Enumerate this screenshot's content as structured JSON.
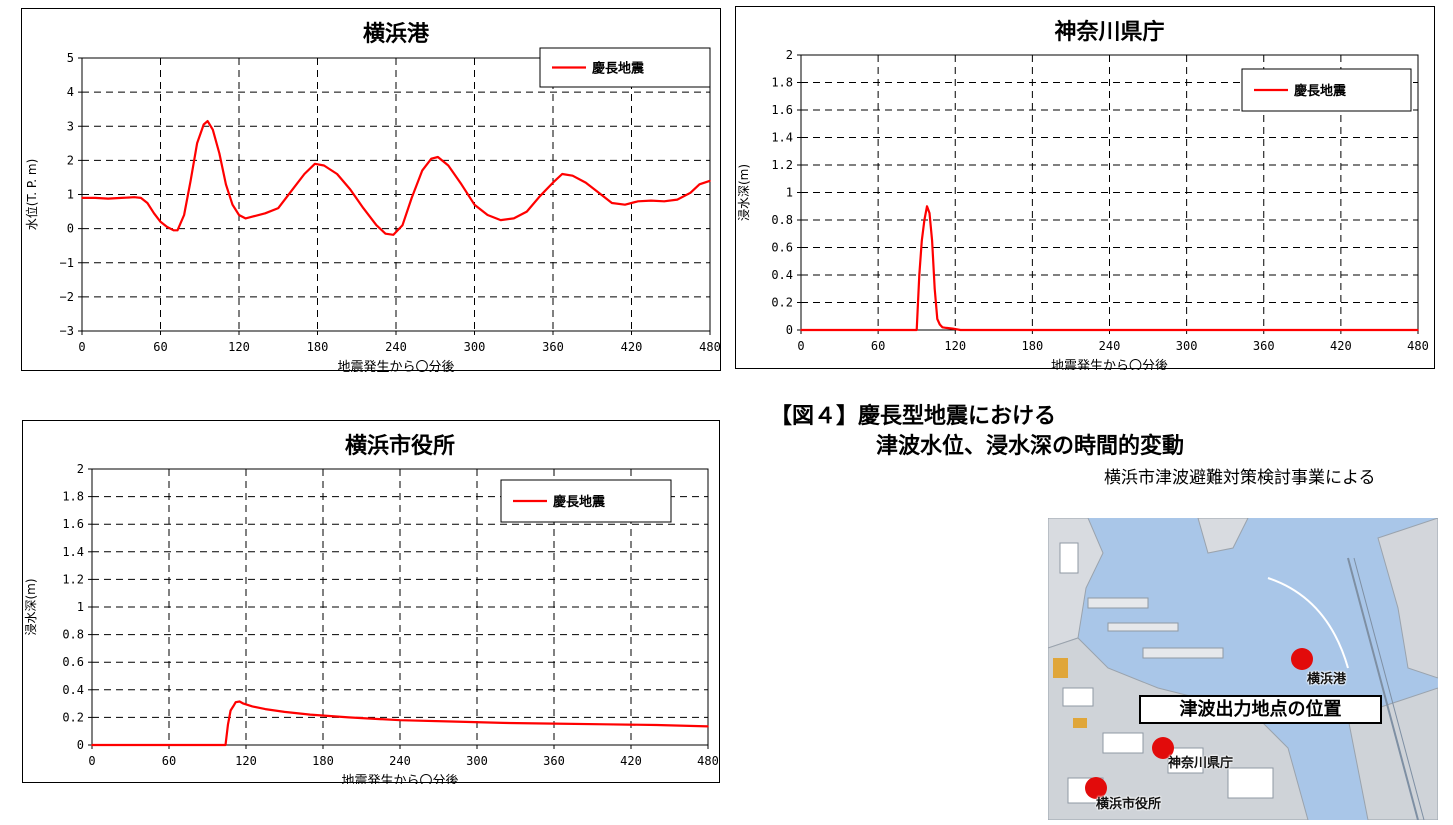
{
  "caption": {
    "line1": "【図４】慶長型地震における",
    "line2": "津波水位、浸水深の時間的変動",
    "source": "横浜市津波避難対策検討事業による"
  },
  "map": {
    "title": "津波出力地点の位置",
    "markers": [
      {
        "label": "横浜港"
      },
      {
        "label": "神奈川県庁"
      },
      {
        "label": "横浜市役所"
      }
    ],
    "colors": {
      "water": "#a9c6e8",
      "marker": "#e20b0b"
    }
  },
  "chart_data": [
    {
      "type": "line",
      "title": "横浜港",
      "xlabel": "地震発生から〇分後",
      "ylabel": "水位(T. P. m)",
      "xlim": [
        0,
        480
      ],
      "ylim": [
        -3,
        5
      ],
      "xticks": [
        0,
        60,
        120,
        180,
        240,
        300,
        360,
        420,
        480
      ],
      "yticks": [
        -3,
        -2,
        -1,
        0,
        1,
        2,
        3,
        4,
        5
      ],
      "ytick_labels": [
        "−3",
        "−2",
        "−1",
        "0",
        "1",
        "2",
        "3",
        "4",
        "5"
      ],
      "grid": true,
      "legend": "top-right",
      "series": [
        {
          "name": "慶長地震",
          "color": "#ff0000",
          "x": [
            0,
            10,
            20,
            30,
            40,
            45,
            50,
            55,
            60,
            65,
            70,
            73,
            78,
            83,
            88,
            93,
            96,
            100,
            105,
            110,
            115,
            120,
            125,
            130,
            140,
            150,
            160,
            170,
            178,
            185,
            195,
            205,
            215,
            225,
            232,
            238,
            245,
            252,
            260,
            267,
            272,
            280,
            290,
            300,
            310,
            320,
            330,
            340,
            350,
            360,
            367,
            375,
            385,
            395,
            405,
            415,
            425,
            435,
            445,
            455,
            465,
            472,
            480
          ],
          "y": [
            0.9,
            0.9,
            0.88,
            0.9,
            0.92,
            0.9,
            0.75,
            0.45,
            0.2,
            0.05,
            -0.05,
            -0.05,
            0.4,
            1.4,
            2.5,
            3.05,
            3.15,
            2.9,
            2.2,
            1.3,
            0.7,
            0.4,
            0.3,
            0.35,
            0.45,
            0.6,
            1.1,
            1.6,
            1.9,
            1.85,
            1.6,
            1.15,
            0.6,
            0.1,
            -0.15,
            -0.18,
            0.1,
            0.9,
            1.7,
            2.05,
            2.1,
            1.85,
            1.3,
            0.7,
            0.4,
            0.25,
            0.3,
            0.5,
            0.95,
            1.35,
            1.6,
            1.55,
            1.35,
            1.05,
            0.75,
            0.7,
            0.8,
            0.82,
            0.8,
            0.85,
            1.05,
            1.3,
            1.4
          ]
        }
      ]
    },
    {
      "type": "line",
      "title": "神奈川県庁",
      "xlabel": "地震発生から〇分後",
      "ylabel": "浸水深(m)",
      "xlim": [
        0,
        480
      ],
      "ylim": [
        0,
        2
      ],
      "xticks": [
        0,
        60,
        120,
        180,
        240,
        300,
        360,
        420,
        480
      ],
      "yticks": [
        0,
        0.2,
        0.4,
        0.6,
        0.8,
        1,
        1.2,
        1.4,
        1.6,
        1.8,
        2
      ],
      "ytick_labels": [
        "0",
        "0.2",
        "0.4",
        "0.6",
        "0.8",
        "1",
        "1.2",
        "1.4",
        "1.6",
        "1.8",
        "2"
      ],
      "grid": true,
      "legend": "top-right",
      "series": [
        {
          "name": "慶長地震",
          "color": "#ff0000",
          "x": [
            0,
            90,
            92,
            94,
            96,
            98,
            100,
            102,
            104,
            106,
            108,
            110,
            113,
            118,
            124,
            130,
            480
          ],
          "y": [
            0,
            0,
            0.4,
            0.65,
            0.8,
            0.9,
            0.85,
            0.65,
            0.3,
            0.08,
            0.04,
            0.02,
            0.015,
            0.01,
            0,
            0,
            0
          ]
        }
      ]
    },
    {
      "type": "line",
      "title": "横浜市役所",
      "xlabel": "地震発生から〇分後",
      "ylabel": "浸水深(m)",
      "xlim": [
        0,
        480
      ],
      "ylim": [
        0,
        2
      ],
      "xticks": [
        0,
        60,
        120,
        180,
        240,
        300,
        360,
        420,
        480
      ],
      "yticks": [
        0,
        0.2,
        0.4,
        0.6,
        0.8,
        1,
        1.2,
        1.4,
        1.6,
        1.8,
        2
      ],
      "ytick_labels": [
        "0",
        "0.2",
        "0.4",
        "0.6",
        "0.8",
        "1",
        "1.2",
        "1.4",
        "1.6",
        "1.8",
        "2"
      ],
      "grid": true,
      "legend": "top-right",
      "series": [
        {
          "name": "慶長地震",
          "color": "#ff0000",
          "x": [
            0,
            104,
            106,
            108,
            110,
            112,
            115,
            118,
            125,
            135,
            150,
            170,
            200,
            240,
            280,
            320,
            360,
            400,
            440,
            480
          ],
          "y": [
            0,
            0,
            0.15,
            0.25,
            0.28,
            0.31,
            0.315,
            0.3,
            0.28,
            0.26,
            0.24,
            0.22,
            0.2,
            0.18,
            0.17,
            0.16,
            0.155,
            0.15,
            0.145,
            0.135
          ]
        }
      ]
    }
  ]
}
